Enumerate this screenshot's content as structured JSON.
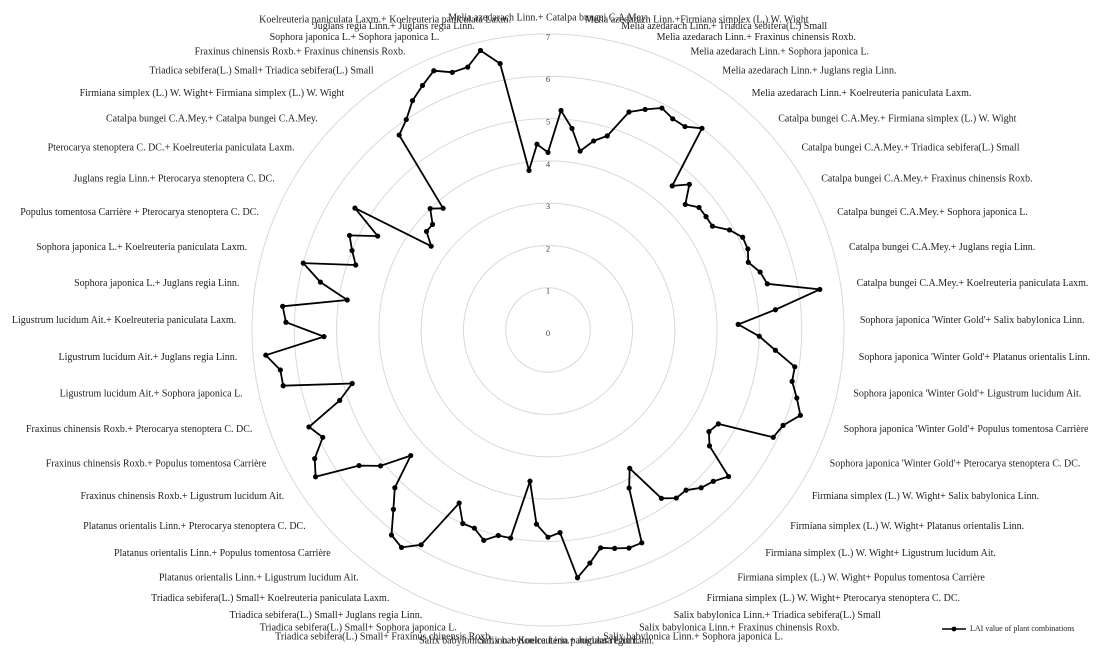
{
  "chart_data": {
    "type": "radar",
    "categories": [
      "Melia azedarach Linn.+ Catalpa bungei C.A.Mey.",
      null,
      "Melia azedarach Linn.+Firmiana simplex (L.) W. Wight",
      null,
      "Melia azedarach Linn.+ Triadica sebifera(L.) Small",
      null,
      "Melia azedarach Linn.+ Fraxinus chinensis Roxb.",
      null,
      "Melia azedarach Linn.+ Sophora japonica L.",
      null,
      "Melia azedarach Linn.+ Juglans regia Linn.",
      null,
      "Melia azedarach Linn.+ Koelreuteria paniculata Laxm.",
      null,
      "Catalpa bungei C.A.Mey.+ Firmiana simplex (L.) W. Wight",
      null,
      "Catalpa bungei C.A.Mey.+ Triadica sebifera(L.) Small",
      null,
      "Catalpa bungei C.A.Mey.+ Fraxinus chinensis Roxb.",
      null,
      "Catalpa bungei C.A.Mey.+ Sophora japonica L.",
      null,
      "Catalpa bungei C.A.Mey.+ Juglans regia Linn.",
      null,
      "Catalpa bungei C.A.Mey.+ Koelreuteria paniculata Laxm.",
      null,
      "Sophora japonica 'Winter Gold'+ Salix babylonica Linn.",
      null,
      "Sophora japonica 'Winter Gold'+ Platanus orientalis Linn.",
      null,
      "Sophora japonica 'Winter Gold'+ Ligustrum lucidum Ait.",
      null,
      "Sophora japonica 'Winter Gold'+ Populus tomentosa Carrière",
      null,
      "Sophora japonica 'Winter Gold'+ Pterocarya stenoptera C. DC.",
      null,
      "Firmiana simplex (L.) W. Wight+ Salix babylonica Linn.",
      null,
      "Firmiana simplex (L.) W. Wight+ Platanus orientalis Linn.",
      null,
      "Firmiana simplex (L.) W. Wight+ Ligustrum lucidum Ait.",
      null,
      "Firmiana simplex (L.) W. Wight+ Populus tomentosa Carrière",
      null,
      "Firmiana simplex (L.) W. Wight+ Pterocarya stenoptera C. DC.",
      null,
      "Salix babylonica Linn.+ Triadica sebifera(L.) Small",
      null,
      "Salix babylonica Linn.+ Fraxinus chinensis Roxb.",
      null,
      "Salix babylonica Linn.+ Sophora japonica L.",
      null,
      "Salix babylonica Linn.+ Juglans regia Linn.",
      null,
      "Salix babylonica Linn.+ Koelreuteria paniculata Laxm.",
      null,
      "Triadica sebifera(L.) Small+ Fraxinus chinensis Roxb.",
      null,
      "Triadica sebifera(L.) Small+ Sophora japonica L.",
      null,
      "Triadica sebifera(L.) Small+ Juglans regia Linn.",
      null,
      "Triadica sebifera(L.) Small+ Koelreuteria paniculata Laxm.",
      null,
      "Platanus orientalis Linn.+ Ligustrum lucidum Ait.",
      null,
      "Platanus orientalis Linn.+ Populus tomentosa Carrière",
      null,
      "Platanus orientalis Linn.+ Pterocarya stenoptera C. DC.",
      null,
      "Fraxinus chinensis Roxb.+ Ligustrum lucidum Ait.",
      null,
      "Fraxinus chinensis Roxb.+ Populus tomentosa Carrière",
      null,
      "Fraxinus chinensis Roxb.+ Pterocarya stenoptera C. DC.",
      null,
      "Ligustrum lucidum Ait.+ Sophora japonica L.",
      null,
      "Ligustrum lucidum Ait.+ Juglans regia Linn.",
      null,
      "Ligustrum lucidum Ait.+ Koelreuteria paniculata Laxm.",
      null,
      "Sophora japonica L.+ Juglans regia Linn.",
      null,
      "Sophora japonica L.+ Koelreuteria paniculata Laxm.",
      null,
      "Populus tomentosa Carrière + Pterocarya stenoptera C. DC.",
      null,
      "Juglans regia Linn.+ Pterocarya stenoptera C. DC.",
      null,
      "Pterocarya stenoptera C. DC.+ Koelreuteria paniculata Laxm.",
      null,
      "Catalpa bungei C.A.Mey.+ Catalpa bungei C.A.Mey.",
      null,
      "Firmiana simplex (L.) W. Wight+ Firmiana simplex (L.) W. Wight",
      null,
      "Triadica sebifera(L.) Small+ Triadica sebifera(L.) Small",
      null,
      "Fraxinus chinensis Roxb.+ Fraxinus chinensis Roxb.",
      null,
      "Sophora japonica L.+ Sophora japonica L.",
      null,
      "Juglans regia Linn.+ Juglans regia Linn.",
      null,
      "Koelreuteria paniculata Laxm.+ Koelreuteria paniculata Laxm.",
      null
    ],
    "series": [
      {
        "name": "LAI value of plant combinations",
        "color": "#000000",
        "values": [
          4.2,
          5.2,
          4.8,
          4.3,
          4.6,
          4.8,
          5.5,
          5.7,
          5.9,
          5.8,
          5.8,
          6.0,
          4.5,
          4.8,
          4.4,
          4.6,
          4.6,
          4.6,
          4.9,
          5.1,
          5.1,
          5.0,
          5.2,
          5.3,
          6.5,
          5.4,
          4.5,
          5.0,
          5.4,
          5.9,
          5.9,
          6.1,
          6.3,
          6.0,
          5.9,
          4.6,
          4.5,
          4.7,
          5.5,
          5.3,
          5.2,
          5.0,
          5.0,
          4.8,
          3.8,
          4.2,
          5.5,
          5.5,
          5.4,
          5.3,
          5.6,
          5.9,
          4.8,
          4.9,
          4.6,
          3.6,
          5.0,
          5.0,
          5.2,
          5.0,
          5.0,
          4.6,
          5.9,
          6.2,
          6.1,
          5.6,
          5.2,
          4.4,
          5.1,
          5.5,
          6.5,
          6.3,
          5.9,
          6.1,
          5.2,
          4.8,
          6.4,
          6.4,
          6.7,
          5.3,
          6.2,
          6.3,
          4.8,
          5.5,
          6.0,
          4.8,
          5.0,
          5.2,
          4.6,
          5.4,
          3.4,
          3.7,
          3.7,
          4.0,
          3.8,
          5.8,
          6.0,
          6.3,
          6.5,
          6.7,
          6.5,
          6.5,
          6.8,
          6.4,
          3.8,
          4.4
        ]
      }
    ],
    "ylim": [
      0,
      7
    ],
    "yticks": [
      0,
      1,
      2,
      3,
      4,
      5,
      6,
      7
    ],
    "grid": true,
    "legend": "bottom-right"
  }
}
